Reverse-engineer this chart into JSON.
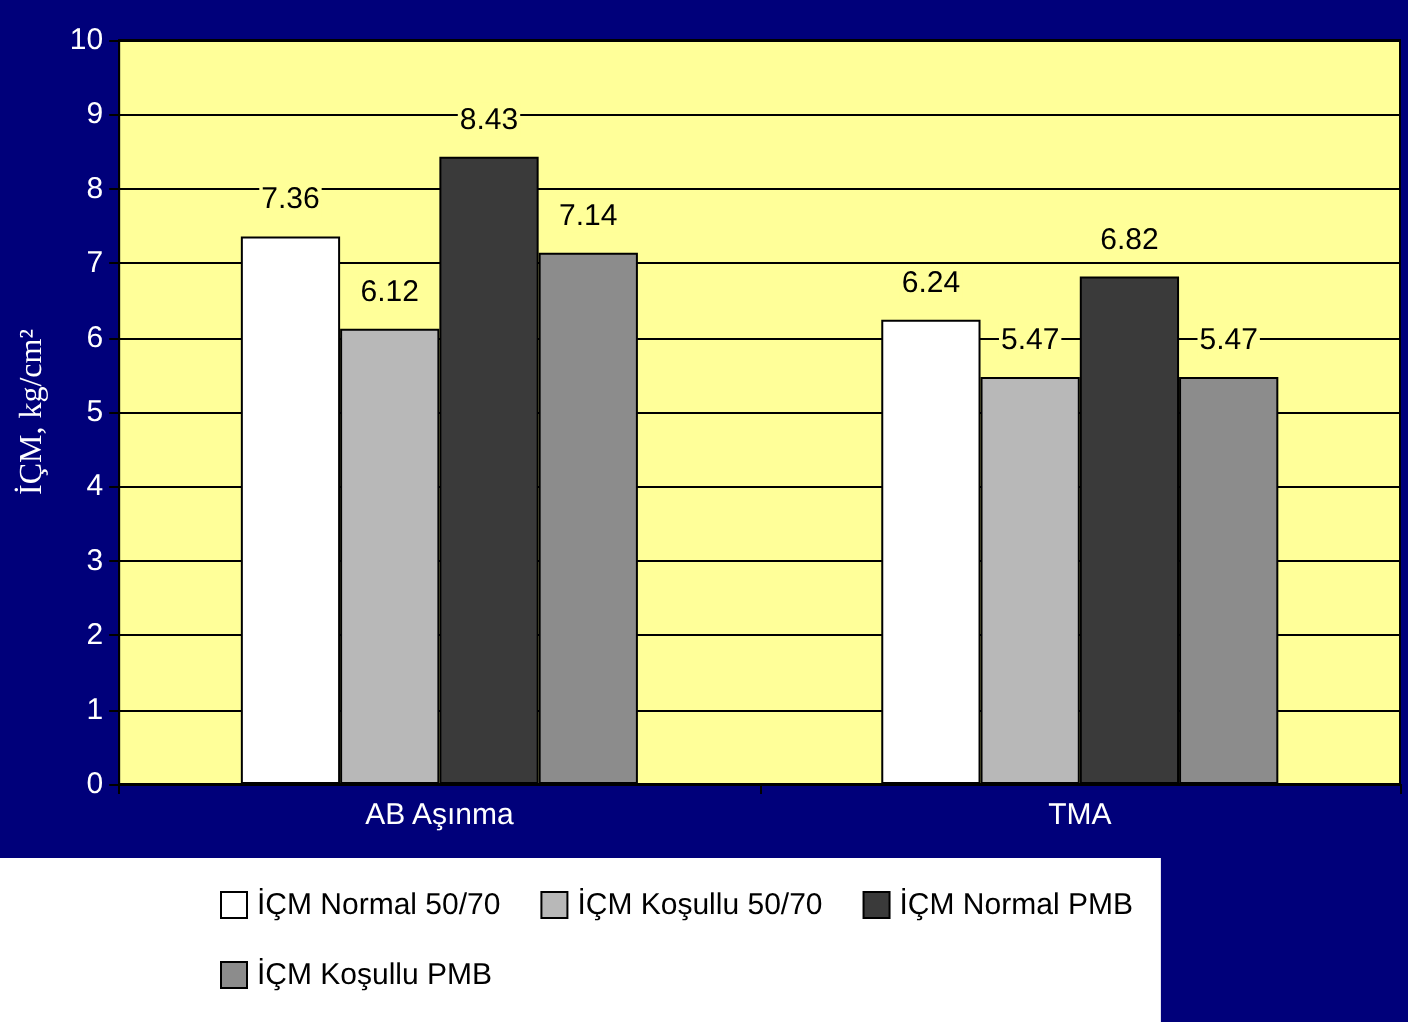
{
  "chart_data": {
    "type": "bar",
    "ylabel": "İÇM, kg/cm²",
    "categories": [
      "AB Aşınma",
      "TMA"
    ],
    "series": [
      {
        "name": "İÇM Normal 50/70",
        "color": "#ffffff",
        "values": [
          7.36,
          6.24
        ]
      },
      {
        "name": "İÇM Koşullu 50/70",
        "color": "#b8b8b8",
        "values": [
          6.12,
          5.47
        ]
      },
      {
        "name": "İÇM Normal PMB",
        "color": "#3a3a3a",
        "values": [
          8.43,
          6.82
        ]
      },
      {
        "name": "İÇM Koşullu PMB",
        "color": "#8c8c8c",
        "values": [
          7.14,
          5.47
        ]
      }
    ],
    "ylim": [
      0,
      10
    ],
    "yticks": [
      0,
      1,
      2,
      3,
      4,
      5,
      6,
      7,
      8,
      9,
      10
    ],
    "grid": "y",
    "legend": "bottom",
    "data_labels": true
  }
}
